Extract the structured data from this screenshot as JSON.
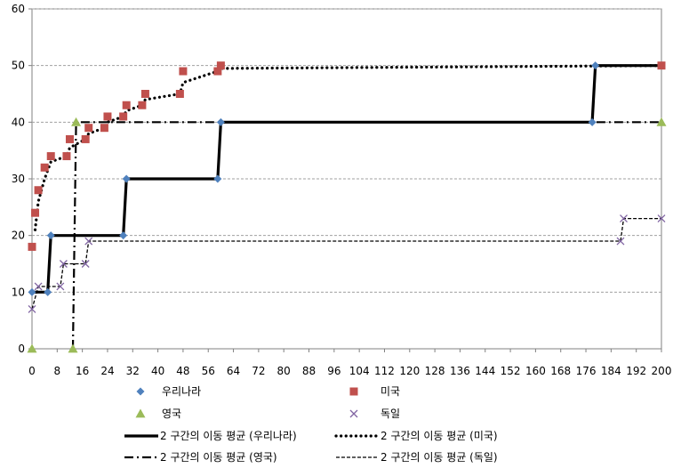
{
  "chart_data": {
    "type": "scatter",
    "title": "",
    "xlabel": "",
    "ylabel": "",
    "xlim": [
      0,
      200
    ],
    "ylim": [
      0,
      60
    ],
    "x_ticks": [
      "0",
      "8",
      "16",
      "24",
      "32",
      "40",
      "48",
      "56",
      "64",
      "72",
      "80",
      "88",
      "96",
      "104",
      "112",
      "120",
      "128",
      "136",
      "144",
      "152",
      "160",
      "168",
      "176",
      "184",
      "192",
      "200"
    ],
    "y_ticks": [
      "0",
      "10",
      "20",
      "30",
      "40",
      "50",
      "60"
    ],
    "grid": "horizontal dashed",
    "legend_position": "bottom",
    "series": [
      {
        "name": "우리나라",
        "kind": "marker",
        "marker": "diamond",
        "color": "#4F81BD",
        "x": [
          0,
          5,
          6,
          29,
          30,
          59,
          60,
          178,
          179
        ],
        "y": [
          10,
          10,
          20,
          20,
          30,
          30,
          40,
          40,
          50
        ]
      },
      {
        "name": "미국",
        "kind": "marker",
        "marker": "square",
        "color": "#C0504D",
        "x": [
          0,
          1,
          2,
          4,
          6,
          11,
          12,
          17,
          18,
          23,
          24,
          29,
          30,
          35,
          36,
          47,
          48,
          59,
          60,
          200
        ],
        "y": [
          18,
          24,
          28,
          32,
          34,
          34,
          37,
          37,
          39,
          39,
          41,
          41,
          43,
          43,
          45,
          45,
          49,
          49,
          50,
          50
        ]
      },
      {
        "name": "영국",
        "kind": "marker",
        "marker": "triangle",
        "color": "#9BBB59",
        "x": [
          0,
          13,
          14,
          200
        ],
        "y": [
          0,
          0,
          40,
          40
        ]
      },
      {
        "name": "독일",
        "kind": "marker",
        "marker": "x",
        "color": "#8064A2",
        "x": [
          0,
          2,
          9,
          10,
          17,
          18,
          187,
          188,
          200
        ],
        "y": [
          7,
          11,
          11,
          15,
          15,
          19,
          19,
          23,
          23
        ]
      },
      {
        "name": "2 구간의 이동 평균 (우리나라)",
        "kind": "line",
        "style": "solid-thick",
        "color": "#000000",
        "x": [
          0,
          5,
          6,
          29,
          30,
          59,
          60,
          178,
          179,
          200
        ],
        "y": [
          10,
          10,
          20,
          20,
          30,
          30,
          40,
          40,
          50,
          50
        ]
      },
      {
        "name": "2 구간의 이동 평균 (미국)",
        "kind": "line",
        "style": "dotted",
        "color": "#000000",
        "x": [
          1,
          2,
          4,
          6,
          11,
          12,
          17,
          18,
          23,
          24,
          29,
          30,
          35,
          36,
          47,
          48,
          59,
          60,
          200
        ],
        "y": [
          21,
          26,
          30,
          33,
          34,
          35.5,
          37,
          38,
          39,
          40,
          41,
          42,
          43,
          44,
          45,
          47,
          49,
          49.5,
          50
        ]
      },
      {
        "name": "2 구간의 이동 평균 (영국)",
        "kind": "line",
        "style": "dash-dot",
        "color": "#000000",
        "x": [
          13,
          14,
          200
        ],
        "y": [
          0,
          40,
          40
        ]
      },
      {
        "name": "2 구간의 이동 평균 (독일)",
        "kind": "line",
        "style": "dashed",
        "color": "#000000",
        "x": [
          0,
          2,
          9,
          10,
          17,
          18,
          187,
          188,
          200
        ],
        "y": [
          7,
          11,
          11,
          15,
          15,
          19,
          19,
          23,
          23
        ]
      }
    ]
  }
}
